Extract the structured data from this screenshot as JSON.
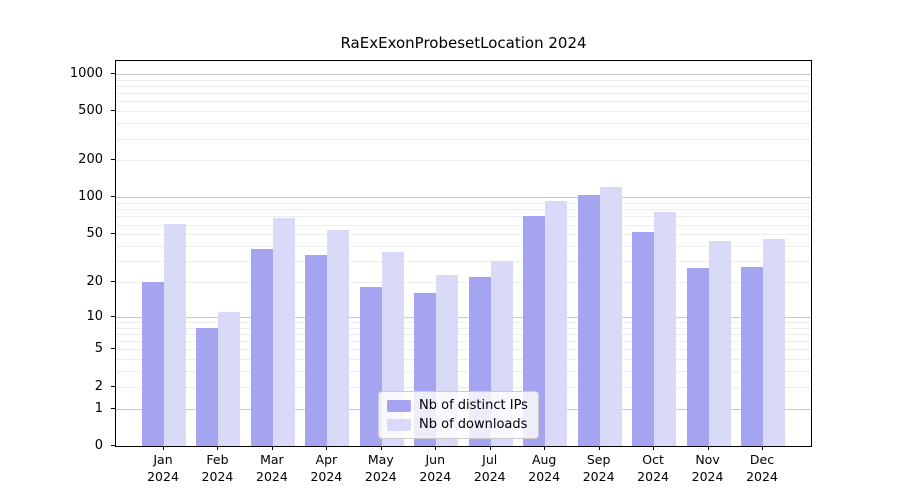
{
  "chart_data": {
    "type": "bar",
    "title": "RaExExonProbesetLocation 2024",
    "year": "2024",
    "months": [
      "Jan",
      "Feb",
      "Mar",
      "Apr",
      "May",
      "Jun",
      "Jul",
      "Aug",
      "Sep",
      "Oct",
      "Nov",
      "Dec"
    ],
    "categories": [
      "Jan 2024",
      "Feb 2024",
      "Mar 2024",
      "Apr 2024",
      "May 2024",
      "Jun 2024",
      "Jul 2024",
      "Aug 2024",
      "Sep 2024",
      "Oct 2024",
      "Nov 2024",
      "Dec 2024"
    ],
    "series": [
      {
        "name": "Nb of distinct IPs",
        "color": "#a4a4f0",
        "values": [
          20,
          8,
          38,
          34,
          18,
          16,
          22,
          70,
          104,
          52,
          26,
          27
        ]
      },
      {
        "name": "Nb of downloads",
        "color": "#d9d9f8",
        "values": [
          61,
          11,
          68,
          54,
          36,
          23,
          30,
          93,
          122,
          76,
          44,
          46
        ]
      }
    ],
    "yscale": "log10(1+x)",
    "y_ticks": [
      0,
      1,
      2,
      5,
      10,
      20,
      50,
      100,
      200,
      500,
      1000
    ],
    "y_tick_labels": [
      "0",
      "1",
      "2",
      "5",
      "10",
      "20",
      "50",
      "100",
      "200",
      "500",
      "1000"
    ],
    "ylim": [
      0,
      1270
    ],
    "xlabel": "",
    "ylabel": "",
    "grid": true,
    "grid_major_color": "#c9c9c9",
    "grid_minor_color": "#ededed",
    "legend_position": "inside bottom-center-left",
    "background_color": "#ffffff",
    "axis_color": "#000000"
  }
}
